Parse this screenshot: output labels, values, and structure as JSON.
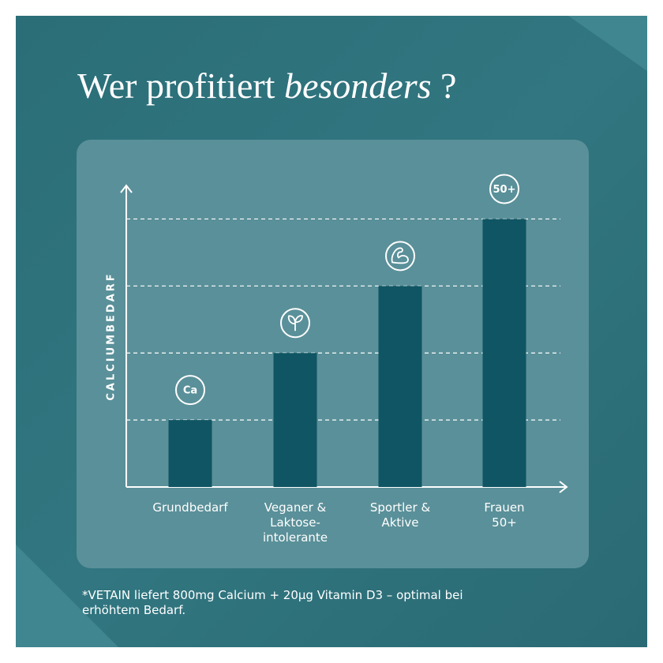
{
  "title": "Wer profitiert",
  "title_emphasis": "besonders",
  "title_end": "?",
  "chart_data": {
    "type": "bar",
    "ylabel": "CALCIUMBEDARF",
    "categories": [
      "Grundbedarf",
      "Veganer &\nLaktose-\nintolerante",
      "Sportler &\nAktive",
      "Frauen\n50+"
    ],
    "values": [
      1,
      2,
      3,
      4
    ],
    "icon_labels": [
      "Ca",
      null,
      null,
      "50+"
    ],
    "color": "#0f5563",
    "ylim": [
      0,
      4.5
    ],
    "grid": true
  },
  "footnote": "*VETAIN liefert 800mg Calcium + 20µg Vitamin D3 – optimal bei erhöhtem Bedarf."
}
